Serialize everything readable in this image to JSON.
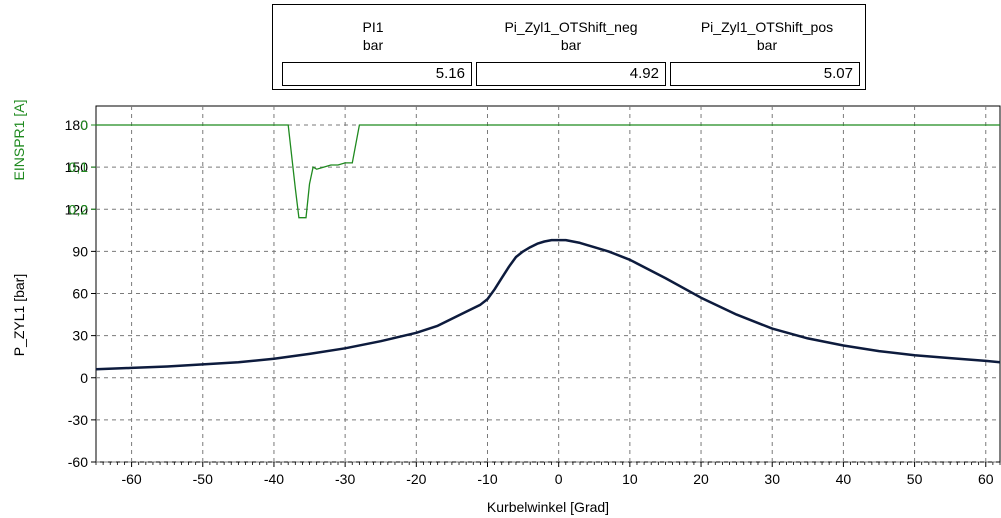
{
  "table": {
    "columns": [
      {
        "name": "PI1",
        "unit": "bar",
        "value": "5.16"
      },
      {
        "name": "Pi_Zyl1_OTShift_neg",
        "unit": "bar",
        "value": "4.92"
      },
      {
        "name": "Pi_Zyl1_OTShift_pos",
        "unit": "bar",
        "value": "5.07"
      }
    ]
  },
  "chart_data": [
    {
      "type": "line",
      "ylabel": "EINSPR1 [A]",
      "yticks": [
        "0,2",
        "0,1",
        "0"
      ],
      "ylim": [
        0,
        0.2
      ],
      "color": "#1f8a1f",
      "series": [
        {
          "x": [
            -65,
            -38,
            -37,
            -36.5,
            -35.5,
            -35,
            -34.5,
            -34,
            -33,
            -32,
            -31,
            -30,
            -29,
            -28,
            62
          ],
          "values": [
            0,
            0,
            0.15,
            0.22,
            0.22,
            0.14,
            0.1,
            0.105,
            0.1,
            0.095,
            0.095,
            0.09,
            0.09,
            0,
            0
          ]
        }
      ]
    },
    {
      "type": "line",
      "xlabel": "Kurbelwinkel [Grad]",
      "ylabel": "P_ZYL1 [bar]",
      "xlim": [
        -65,
        62
      ],
      "ylim": [
        -60,
        180
      ],
      "xticks": [
        -60,
        -50,
        -40,
        -30,
        -20,
        -10,
        0,
        10,
        20,
        30,
        40,
        50,
        60
      ],
      "yticks": [
        180,
        150,
        120,
        90,
        60,
        30,
        0,
        -30,
        -60
      ],
      "grid": true,
      "color": "#0d1b3d",
      "series": [
        {
          "x": [
            -65,
            -60,
            -55,
            -50,
            -45,
            -40,
            -35,
            -30,
            -25,
            -20,
            -17,
            -15,
            -13,
            -11,
            -10,
            -9,
            -8,
            -7,
            -6,
            -5,
            -4,
            -3,
            -2,
            -1,
            0,
            1,
            2,
            3,
            4,
            5,
            7,
            10,
            15,
            20,
            25,
            30,
            35,
            40,
            45,
            50,
            55,
            60,
            62
          ],
          "values": [
            6,
            7,
            8,
            9.5,
            11,
            13.5,
            17,
            21,
            26,
            32,
            37,
            42,
            47,
            52,
            56,
            63,
            71,
            79,
            86,
            90,
            93,
            95.5,
            97,
            98,
            98,
            98,
            97,
            96,
            94.5,
            93,
            90,
            84,
            71,
            57,
            45,
            35,
            28,
            23,
            19,
            16,
            14,
            12,
            11
          ]
        }
      ]
    }
  ]
}
